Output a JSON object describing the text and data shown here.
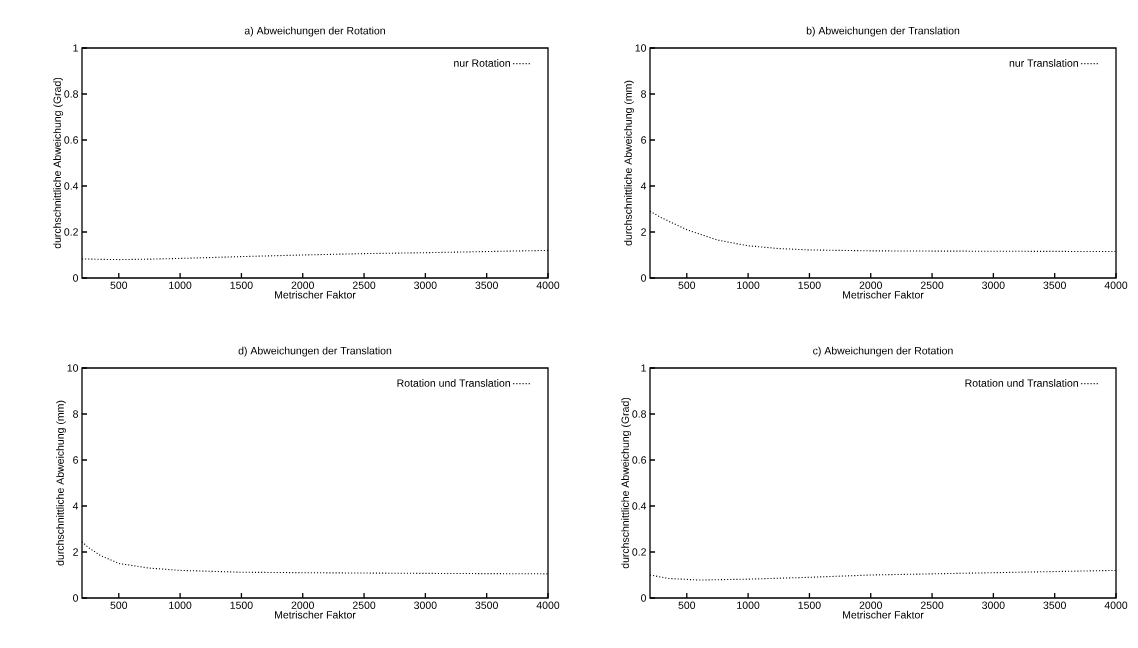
{
  "chart_data": [
    {
      "type": "line",
      "title": "a) Abweichungen der Rotation",
      "xlabel": "Metrischer Faktor",
      "ylabel": "durchschnittliche Abweichung (Grad)",
      "xlim": [
        200,
        4000
      ],
      "ylim": [
        0,
        1
      ],
      "xticks": [
        500,
        1000,
        1500,
        2000,
        2500,
        3000,
        3500,
        4000
      ],
      "yticks": [
        0,
        0.2,
        0.4,
        0.6,
        0.8,
        1
      ],
      "legend": "top right",
      "grid": false,
      "line_style": "dotted",
      "marker": "none",
      "series": [
        {
          "name": "nur Rotation",
          "color": "#000000",
          "x": [
            200,
            350,
            500,
            750,
            1000,
            1500,
            2000,
            2500,
            3000,
            3500,
            4000
          ],
          "values": [
            0.083,
            0.081,
            0.08,
            0.082,
            0.085,
            0.093,
            0.1,
            0.106,
            0.11,
            0.115,
            0.12
          ]
        }
      ]
    },
    {
      "type": "line",
      "title": "b) Abweichungen der Translation",
      "xlabel": "Metrischer Faktor",
      "ylabel": "durchschnittliche Abweichung (mm)",
      "xlim": [
        200,
        4000
      ],
      "ylim": [
        0,
        10
      ],
      "xticks": [
        500,
        1000,
        1500,
        2000,
        2500,
        3000,
        3500,
        4000
      ],
      "yticks": [
        0,
        2,
        4,
        6,
        8,
        10
      ],
      "legend": "top right",
      "grid": false,
      "line_style": "dotted",
      "marker": "none",
      "series": [
        {
          "name": "nur Translation",
          "color": "#000000",
          "x": [
            200,
            300,
            500,
            750,
            1000,
            1250,
            1500,
            2000,
            2500,
            4000
          ],
          "values": [
            2.9,
            2.6,
            2.1,
            1.65,
            1.4,
            1.28,
            1.22,
            1.18,
            1.17,
            1.15
          ]
        }
      ]
    },
    {
      "type": "line",
      "title": "d) Abweichungen der Translation",
      "xlabel": "Metrischer Faktor",
      "ylabel": "durchschnittliche Abweichung (mm)",
      "xlim": [
        200,
        4000
      ],
      "ylim": [
        0,
        10
      ],
      "xticks": [
        500,
        1000,
        1500,
        2000,
        2500,
        3000,
        3500,
        4000
      ],
      "yticks": [
        0,
        2,
        4,
        6,
        8,
        10
      ],
      "legend": "top right",
      "grid": false,
      "line_style": "dotted",
      "marker": "none",
      "series": [
        {
          "name": "Rotation und Translation",
          "color": "#000000",
          "x": [
            200,
            250,
            350,
            500,
            750,
            1000,
            1500,
            2000,
            3000,
            4000
          ],
          "values": [
            2.45,
            2.2,
            1.85,
            1.5,
            1.3,
            1.2,
            1.12,
            1.1,
            1.07,
            1.05
          ]
        }
      ]
    },
    {
      "type": "line",
      "title": "c) Abweichungen der Rotation",
      "xlabel": "Metrischer Faktor",
      "ylabel": "durchschnittliche Abweichung (Grad)",
      "xlim": [
        200,
        4000
      ],
      "ylim": [
        0,
        1
      ],
      "xticks": [
        500,
        1000,
        1500,
        2000,
        2500,
        3000,
        3500,
        4000
      ],
      "yticks": [
        0,
        0.2,
        0.4,
        0.6,
        0.8,
        1
      ],
      "legend": "top right",
      "grid": false,
      "line_style": "dotted",
      "marker": "none",
      "series": [
        {
          "name": "Rotation und Translation",
          "color": "#000000",
          "x": [
            200,
            350,
            600,
            1000,
            1500,
            2000,
            2500,
            3000,
            3500,
            4000
          ],
          "values": [
            0.1,
            0.085,
            0.078,
            0.082,
            0.09,
            0.1,
            0.105,
            0.11,
            0.115,
            0.12
          ]
        }
      ]
    }
  ]
}
